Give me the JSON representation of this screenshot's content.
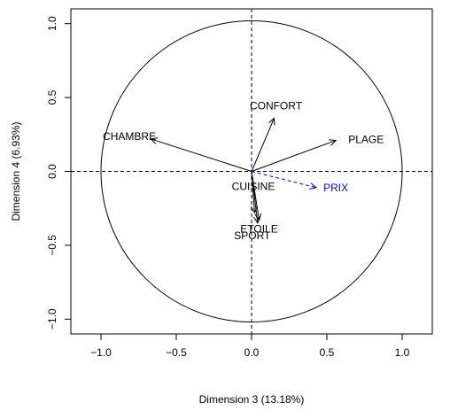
{
  "chart_data": {
    "type": "scatter",
    "title": "",
    "xlabel": "Dimension 3 (13.18%)",
    "ylabel": "Dimension 4 (6.93%)",
    "xlim": [
      -1.2,
      1.2
    ],
    "ylim": [
      -1.1,
      1.1
    ],
    "x_ticks": [
      -1.0,
      -0.5,
      0.0,
      0.5,
      1.0
    ],
    "y_ticks": [
      -1.0,
      -0.5,
      0.0,
      0.5,
      1.0
    ],
    "x_tick_labels": [
      "−1.0",
      "−0.5",
      "0.0",
      "0.5",
      "1.0"
    ],
    "y_tick_labels": [
      "−1.0",
      "−0.5",
      "0.0",
      "0.5",
      "1.0"
    ],
    "unit_circle": true,
    "reference_lines": {
      "x": 0,
      "y": 0,
      "style": "dashed"
    },
    "active_color": "#000000",
    "supplementary_color": "#0000ff",
    "variables": [
      {
        "label": "CONFORT",
        "x": 0.15,
        "y": 0.36,
        "supplementary": false
      },
      {
        "label": "CHAMBRE",
        "x": -0.67,
        "y": 0.22,
        "supplementary": false
      },
      {
        "label": "PLAGE",
        "x": 0.56,
        "y": 0.21,
        "supplementary": false
      },
      {
        "label": "CUISINE",
        "x": 0.02,
        "y": -0.28,
        "supplementary": false
      },
      {
        "label": "ETOILE",
        "x": 0.05,
        "y": -0.33,
        "supplementary": false
      },
      {
        "label": "SPORT",
        "x": 0.04,
        "y": -0.35,
        "supplementary": false
      },
      {
        "label": "PRIX",
        "x": 0.43,
        "y": -0.11,
        "supplementary": true
      }
    ]
  }
}
